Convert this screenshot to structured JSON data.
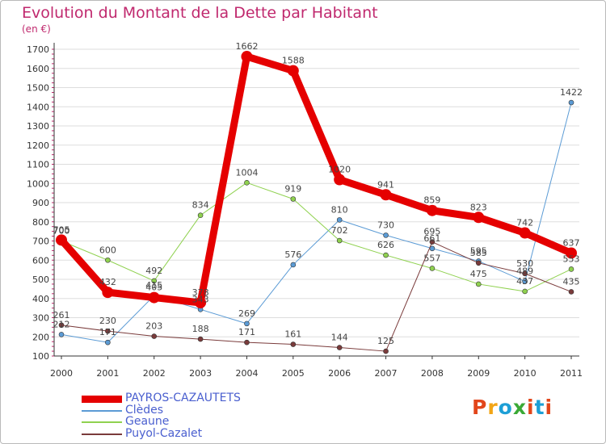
{
  "colors": {
    "title": "#c0296e",
    "axis": "#333333",
    "legend_text": "#4a5fcf",
    "grid": "#dddddd",
    "logo": [
      "#e2461b",
      "#f2a516",
      "#1d9fd6",
      "#3aa935",
      "#e2461b",
      "#1d9fd6"
    ]
  },
  "logo_letters": [
    "P",
    "r",
    "o",
    "x",
    "i",
    "t",
    "i"
  ],
  "chart_data": {
    "type": "line",
    "title": "Evolution du Montant de la Dette par Habitant",
    "ylabel": "(en €)",
    "xlabel": "",
    "x": [
      "2000",
      "2001",
      "2002",
      "2003",
      "2004",
      "2005",
      "2006",
      "2007",
      "2008",
      "2009",
      "2010",
      "2011"
    ],
    "yticks": [
      "100",
      "200",
      "300",
      "400",
      "500",
      "600",
      "700",
      "800",
      "900",
      "1000",
      "1100",
      "1200",
      "1300",
      "1400",
      "1500",
      "1600",
      "1700"
    ],
    "ylim": [
      100,
      1700
    ],
    "grid": "horizontal",
    "legend_position": "bottom-left",
    "series": [
      {
        "name": "PAYROS-CAZAUTETS",
        "color": "#e50000",
        "width": 9,
        "values": [
          705,
          432,
          405,
          378,
          1662,
          1588,
          1020,
          941,
          859,
          823,
          742,
          637
        ],
        "labels": [
          "705",
          "432",
          "405",
          "378",
          "1662",
          "1588",
          "1020",
          "941",
          "859",
          "823",
          "742",
          "637"
        ]
      },
      {
        "name": "Clèdes",
        "color": "#5b9bd5",
        "width": 1,
        "values": [
          212,
          171,
          415,
          343,
          269,
          576,
          810,
          730,
          661,
          595,
          489,
          1422
        ],
        "labels": [
          "212",
          "171",
          "415",
          "343",
          "269",
          "576",
          "810",
          "730",
          "661",
          "595",
          "489",
          "1422"
        ]
      },
      {
        "name": "Geaune",
        "color": "#8fd14f",
        "width": 1,
        "values": [
          700,
          600,
          492,
          834,
          1004,
          919,
          702,
          626,
          557,
          475,
          437,
          553
        ],
        "labels": [
          "700",
          "600",
          "492",
          "834",
          "1004",
          "919",
          "702",
          "626",
          "557",
          "475",
          "437",
          "553"
        ]
      },
      {
        "name": "Puyol-Cazalet",
        "color": "#7a3b3b",
        "width": 1,
        "values": [
          261,
          230,
          203,
          188,
          171,
          161,
          144,
          125,
          695,
          585,
          530,
          435
        ],
        "labels": [
          "261",
          "230",
          "203",
          "188",
          "171",
          "161",
          "144",
          "125",
          "695",
          "585",
          "530",
          "435"
        ]
      }
    ]
  }
}
